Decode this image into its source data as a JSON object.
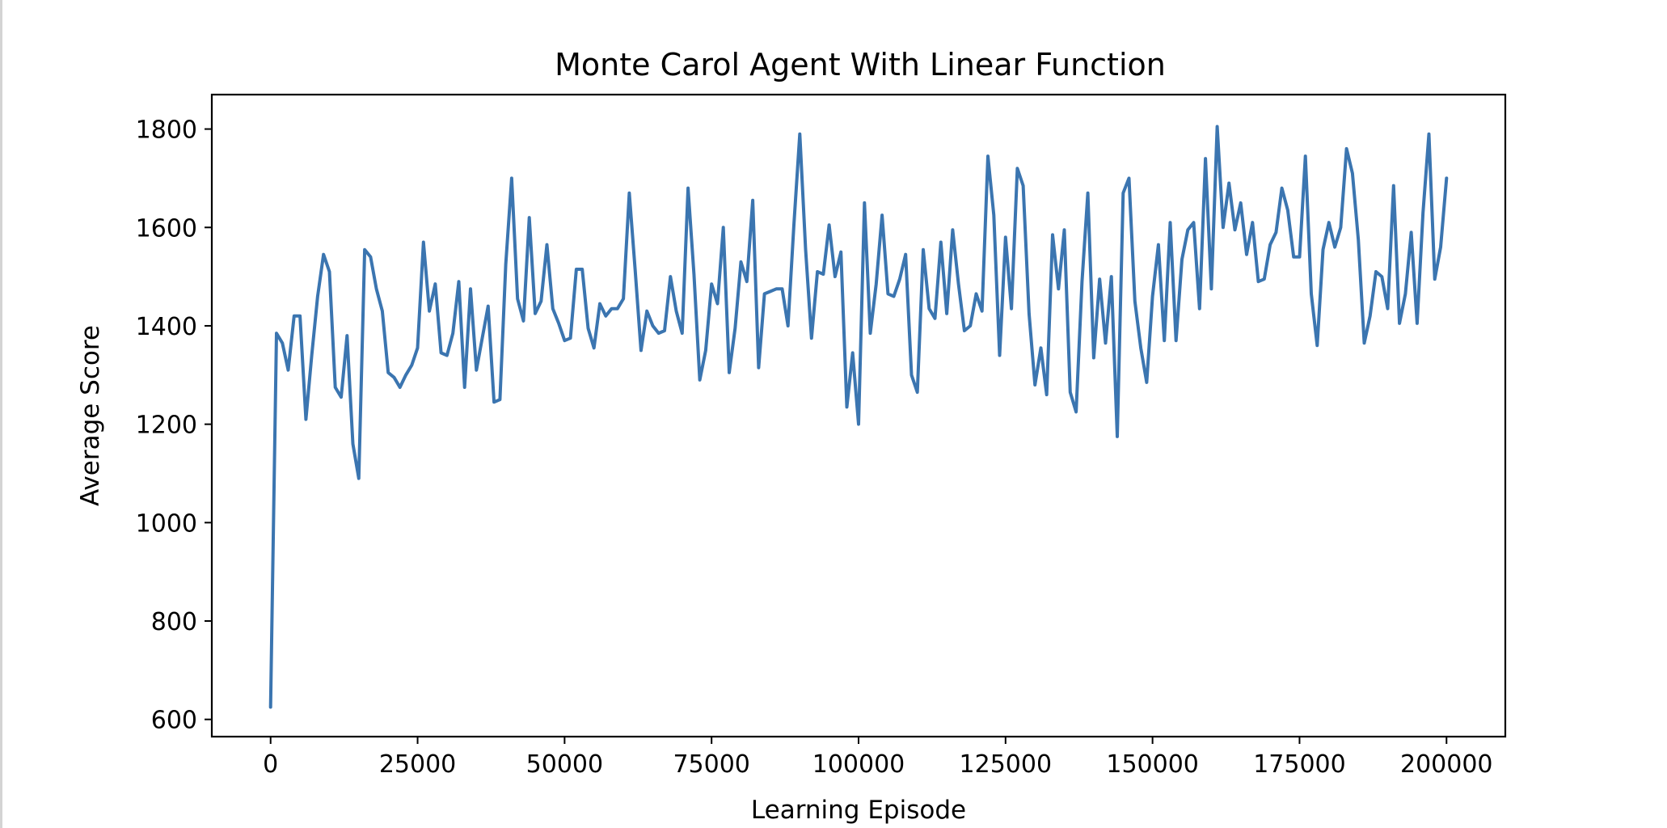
{
  "chart_data": {
    "type": "line",
    "title": "Monte Carol Agent With Linear Function",
    "xlabel": "Learning Episode",
    "ylabel": "Average Score",
    "xlim": [
      -10000,
      210000
    ],
    "ylim": [
      565,
      1870
    ],
    "xticks": [
      0,
      25000,
      50000,
      75000,
      100000,
      125000,
      150000,
      175000,
      200000
    ],
    "xtick_labels": [
      "0",
      "25000",
      "50000",
      "75000",
      "100000",
      "125000",
      "150000",
      "175000",
      "200000"
    ],
    "yticks": [
      600,
      800,
      1000,
      1200,
      1400,
      1600,
      1800
    ],
    "ytick_labels": [
      "600",
      "800",
      "1000",
      "1200",
      "1400",
      "1600",
      "1800"
    ],
    "grid": false,
    "series": [
      {
        "color": "#3b75b0",
        "x_start": 0,
        "x_step": 1000,
        "values": [
          625,
          1385,
          1365,
          1310,
          1420,
          1420,
          1210,
          1340,
          1460,
          1545,
          1510,
          1275,
          1255,
          1380,
          1160,
          1090,
          1555,
          1540,
          1475,
          1430,
          1305,
          1295,
          1275,
          1300,
          1320,
          1355,
          1570,
          1430,
          1485,
          1345,
          1340,
          1385,
          1490,
          1275,
          1475,
          1310,
          1375,
          1440,
          1245,
          1250,
          1525,
          1700,
          1455,
          1410,
          1620,
          1425,
          1450,
          1565,
          1435,
          1405,
          1370,
          1375,
          1515,
          1515,
          1395,
          1355,
          1445,
          1420,
          1435,
          1435,
          1455,
          1670,
          1515,
          1350,
          1430,
          1400,
          1385,
          1390,
          1500,
          1430,
          1385,
          1680,
          1505,
          1290,
          1350,
          1485,
          1445,
          1600,
          1305,
          1395,
          1530,
          1490,
          1655,
          1315,
          1465,
          1470,
          1475,
          1475,
          1400,
          1605,
          1790,
          1555,
          1375,
          1510,
          1505,
          1605,
          1500,
          1550,
          1235,
          1345,
          1200,
          1650,
          1385,
          1485,
          1625,
          1465,
          1460,
          1495,
          1545,
          1300,
          1265,
          1555,
          1435,
          1415,
          1570,
          1425,
          1595,
          1485,
          1390,
          1400,
          1465,
          1430,
          1745,
          1625,
          1340,
          1580,
          1435,
          1720,
          1685,
          1425,
          1280,
          1355,
          1260,
          1585,
          1475,
          1595,
          1265,
          1225,
          1490,
          1670,
          1335,
          1495,
          1365,
          1500,
          1175,
          1670,
          1700,
          1450,
          1355,
          1285,
          1460,
          1565,
          1370,
          1610,
          1370,
          1535,
          1595,
          1610,
          1435,
          1740,
          1475,
          1805,
          1600,
          1690,
          1595,
          1650,
          1545,
          1610,
          1490,
          1495,
          1565,
          1590,
          1680,
          1635,
          1540,
          1540,
          1745,
          1465,
          1360,
          1555,
          1610,
          1560,
          1600,
          1760,
          1710,
          1575,
          1365,
          1420,
          1510,
          1500,
          1435,
          1685,
          1405,
          1465,
          1590,
          1405,
          1630,
          1790,
          1495,
          1560,
          1700
        ]
      }
    ]
  }
}
